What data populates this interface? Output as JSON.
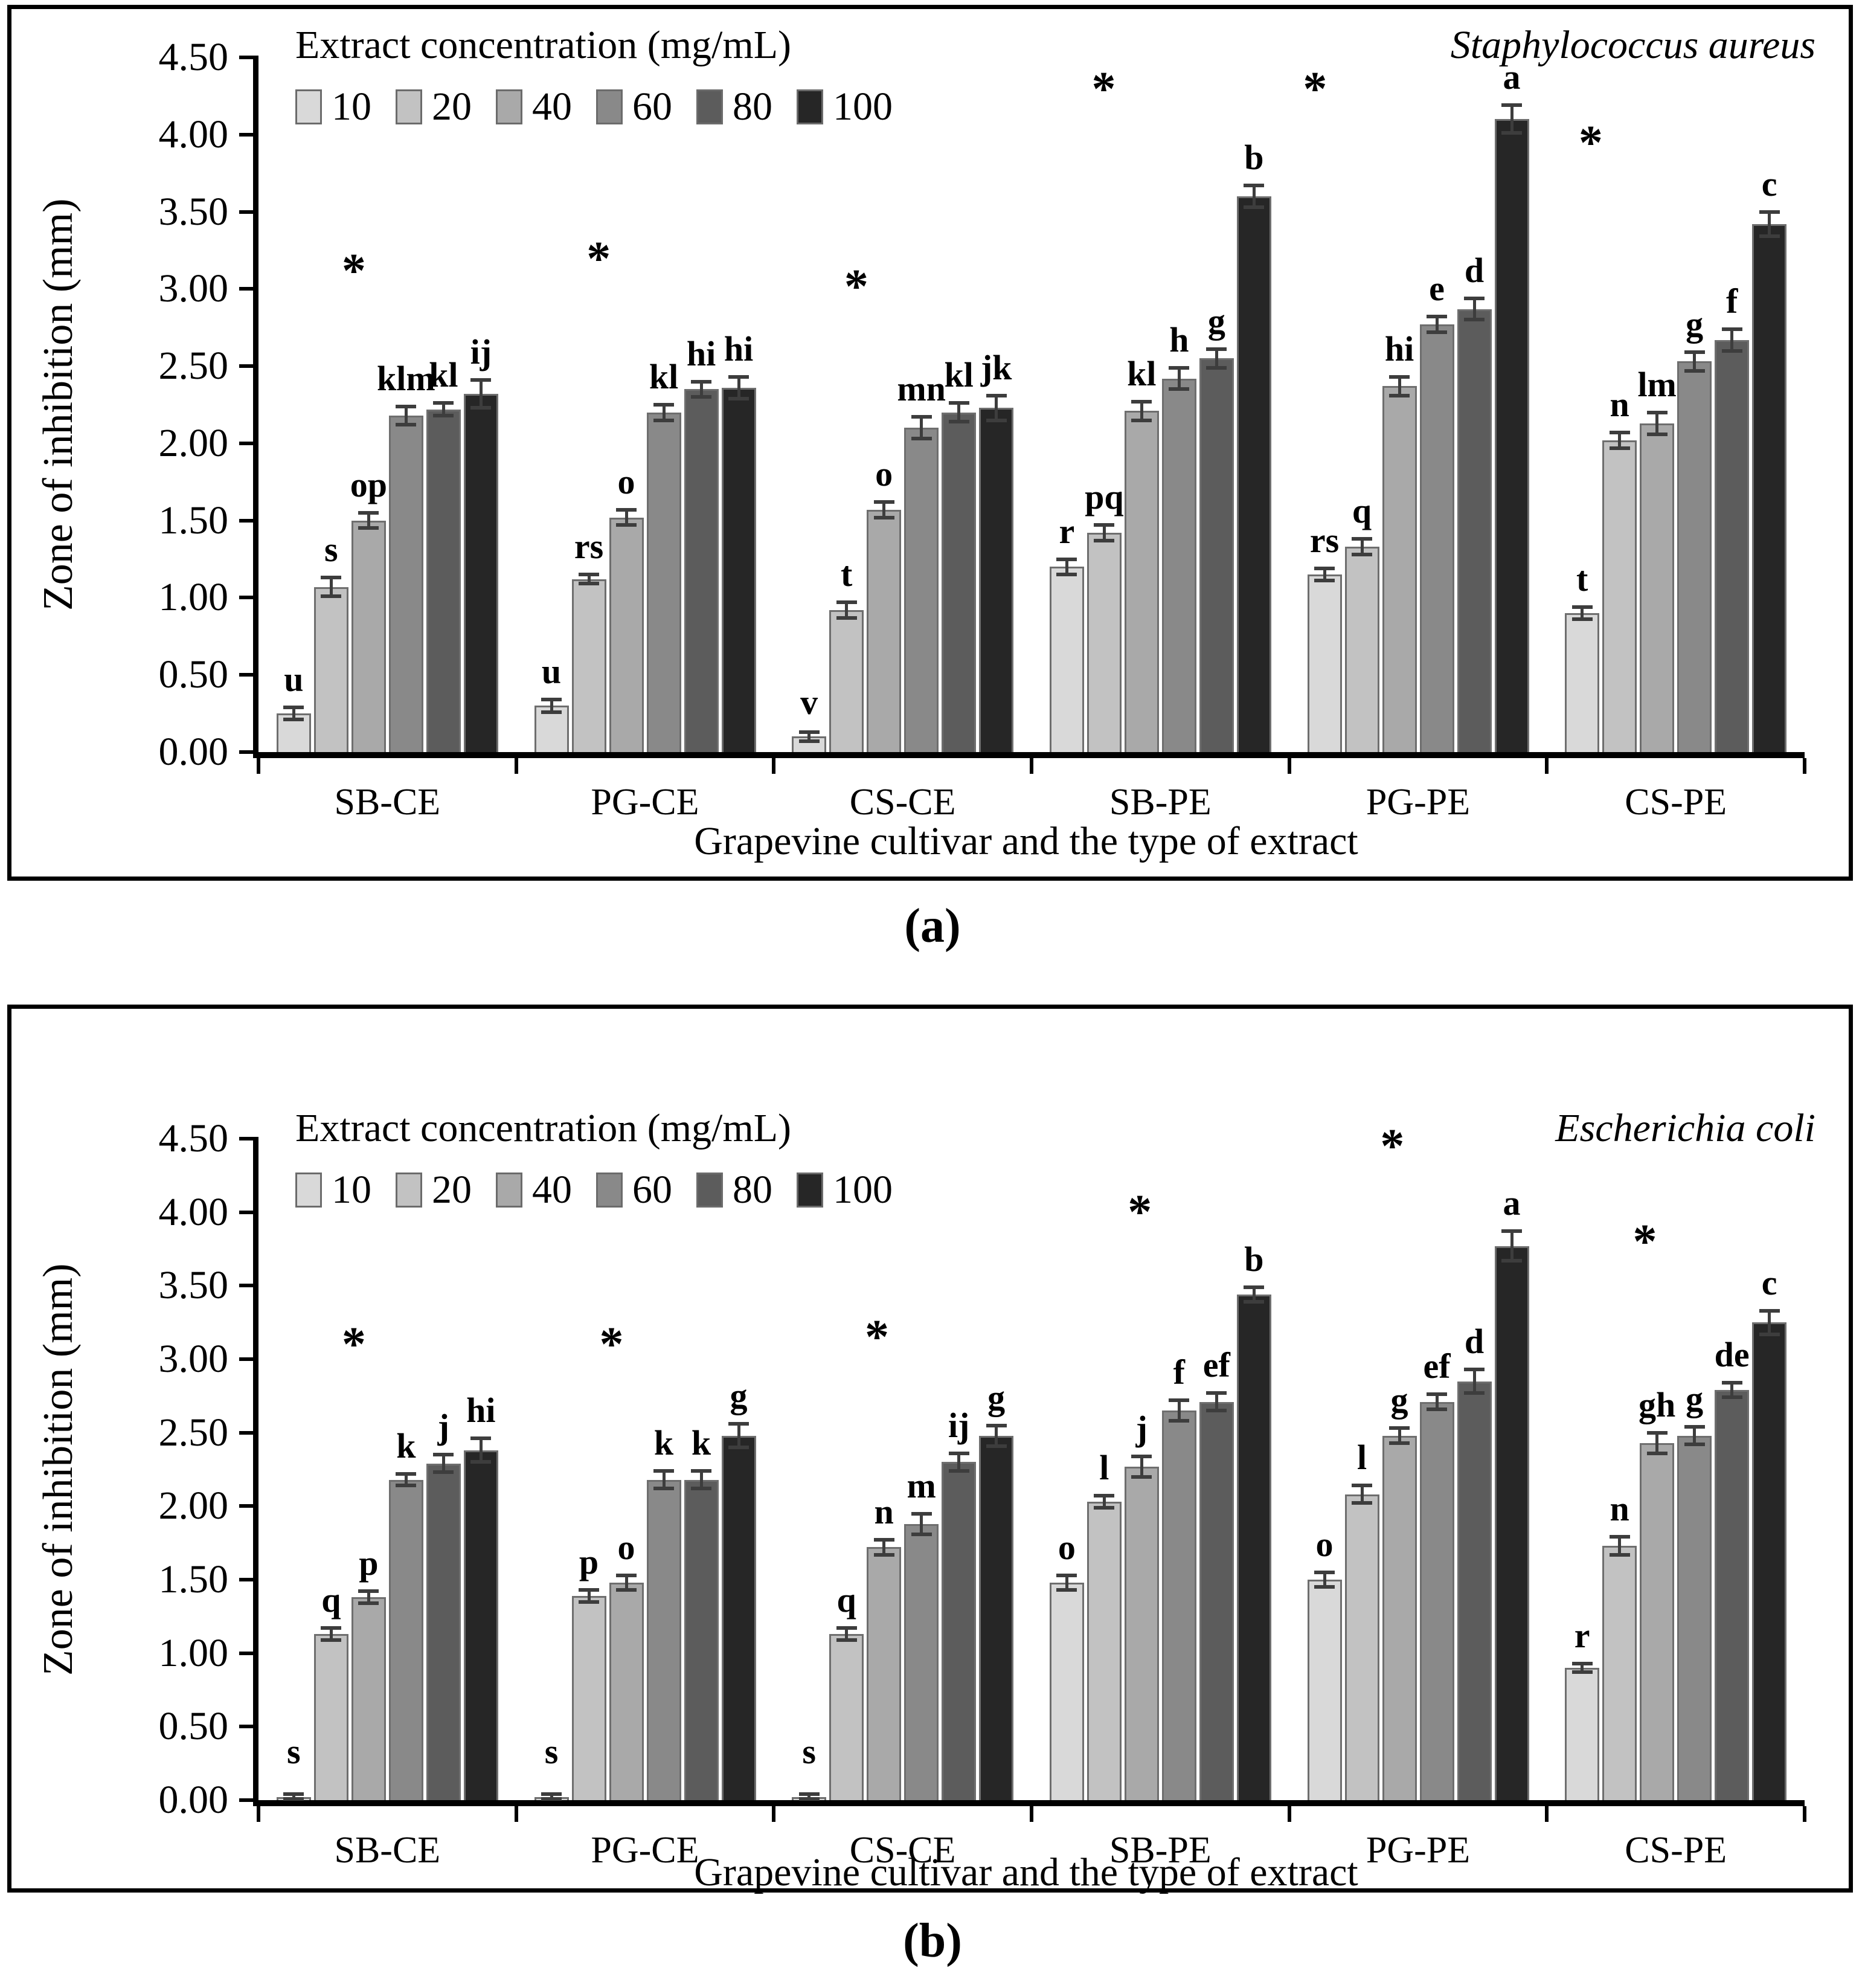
{
  "chart_data": [
    {
      "id": "a",
      "type": "bar",
      "panel_caption": "(a)",
      "title": "Staphylococcus aureus",
      "legend_title": "Extract concentration (mg/mL)",
      "legend_position": "top-left-inside",
      "xlabel": "Grapevine cultivar and the type of extract",
      "ylabel": "Zone of inhibition (mm)",
      "ylim": [
        0,
        4.5
      ],
      "ytick_step": 0.5,
      "grid": false,
      "axis_color": "#000000",
      "error_bar_color": "#3d3d3d",
      "categories": [
        "SB-CE",
        "PG-CE",
        "CS-CE",
        "SB-PE",
        "PG-PE",
        "CS-PE"
      ],
      "series": [
        {
          "name": "10",
          "color": "#d9d9d9",
          "values": [
            0.25,
            0.3,
            0.1,
            1.2,
            1.15,
            0.9
          ],
          "errors": [
            0.04,
            0.04,
            0.03,
            0.05,
            0.04,
            0.04
          ],
          "letters": [
            "u",
            "u",
            "v",
            "r",
            "rs",
            "t"
          ]
        },
        {
          "name": "20",
          "color": "#c2c2c2",
          "values": [
            1.07,
            1.12,
            0.92,
            1.42,
            1.33,
            2.02
          ],
          "errors": [
            0.06,
            0.03,
            0.05,
            0.05,
            0.05,
            0.05
          ],
          "letters": [
            "s",
            "rs",
            "t",
            "pq",
            "q",
            "n"
          ]
        },
        {
          "name": "40",
          "color": "#a9a9a9",
          "values": [
            1.5,
            1.52,
            1.57,
            2.21,
            2.37,
            2.13
          ],
          "errors": [
            0.05,
            0.05,
            0.05,
            0.06,
            0.06,
            0.07
          ],
          "letters": [
            "op",
            "o",
            "o",
            "kl",
            "hi",
            "lm"
          ]
        },
        {
          "name": "60",
          "color": "#898989",
          "values": [
            2.18,
            2.2,
            2.1,
            2.42,
            2.77,
            2.53
          ],
          "errors": [
            0.06,
            0.05,
            0.07,
            0.07,
            0.05,
            0.06
          ],
          "letters": [
            "klm",
            "kl",
            "mn",
            "h",
            "e",
            "g"
          ]
        },
        {
          "name": "80",
          "color": "#5c5c5c",
          "values": [
            2.22,
            2.35,
            2.2,
            2.55,
            2.87,
            2.67
          ],
          "errors": [
            0.04,
            0.05,
            0.06,
            0.06,
            0.07,
            0.07
          ],
          "letters": [
            "kl",
            "hi",
            "kl",
            "g",
            "d",
            "f"
          ]
        },
        {
          "name": "100",
          "color": "#262626",
          "values": [
            2.32,
            2.36,
            2.23,
            3.6,
            4.1,
            3.42
          ],
          "errors": [
            0.09,
            0.07,
            0.08,
            0.07,
            0.09,
            0.08
          ],
          "letters": [
            "ij",
            "hi",
            "jk",
            "b",
            "a",
            "c"
          ]
        }
      ],
      "asterisks": [
        {
          "category": "SB-CE",
          "x_frac": 0.37,
          "y": 3.02
        },
        {
          "category": "PG-CE",
          "x_frac": 0.32,
          "y": 3.1
        },
        {
          "category": "CS-CE",
          "x_frac": 0.32,
          "y": 2.92
        },
        {
          "category": "SB-PE",
          "x_frac": 0.28,
          "y": 4.2
        },
        {
          "category": "PG-PE",
          "x_frac": 0.1,
          "y": 4.2
        },
        {
          "category": "CS-PE",
          "x_frac": 0.17,
          "y": 3.85
        }
      ]
    },
    {
      "id": "b",
      "type": "bar",
      "panel_caption": "(b)",
      "title": "Escherichia coli",
      "legend_title": "Extract concentration (mg/mL)",
      "legend_position": "top-left-inside",
      "xlabel": "Grapevine cultivar and the type of extract",
      "ylabel": "Zone of inhibition (mm)",
      "ylim": [
        0,
        4.5
      ],
      "ytick_step": 0.5,
      "grid": false,
      "axis_color": "#000000",
      "error_bar_color": "#3d3d3d",
      "categories": [
        "SB-CE",
        "PG-CE",
        "CS-CE",
        "SB-PE",
        "PG-PE",
        "CS-PE"
      ],
      "series": [
        {
          "name": "10",
          "color": "#d9d9d9",
          "values": [
            0.02,
            0.02,
            0.02,
            1.48,
            1.5,
            0.9
          ],
          "errors": [
            0.01,
            0.01,
            0.01,
            0.05,
            0.05,
            0.03
          ],
          "letters": [
            "s",
            "s",
            "s",
            "o",
            "o",
            "r"
          ]
        },
        {
          "name": "20",
          "color": "#c2c2c2",
          "values": [
            1.13,
            1.39,
            1.13,
            2.03,
            2.08,
            1.73
          ],
          "errors": [
            0.04,
            0.04,
            0.04,
            0.04,
            0.06,
            0.06
          ],
          "letters": [
            "q",
            "p",
            "q",
            "l",
            "l",
            "n"
          ]
        },
        {
          "name": "40",
          "color": "#a9a9a9",
          "values": [
            1.38,
            1.48,
            1.72,
            2.27,
            2.48,
            2.43
          ],
          "errors": [
            0.04,
            0.05,
            0.05,
            0.07,
            0.05,
            0.07
          ],
          "letters": [
            "p",
            "o",
            "n",
            "j",
            "g",
            "gh"
          ]
        },
        {
          "name": "60",
          "color": "#898989",
          "values": [
            2.18,
            2.18,
            1.88,
            2.65,
            2.71,
            2.48
          ],
          "errors": [
            0.04,
            0.06,
            0.07,
            0.07,
            0.05,
            0.06
          ],
          "letters": [
            "k",
            "k",
            "m",
            "f",
            "ef",
            "g"
          ]
        },
        {
          "name": "80",
          "color": "#5c5c5c",
          "values": [
            2.29,
            2.18,
            2.3,
            2.71,
            2.85,
            2.79
          ],
          "errors": [
            0.06,
            0.06,
            0.06,
            0.06,
            0.08,
            0.05
          ],
          "letters": [
            "j",
            "k",
            "ij",
            "ef",
            "d",
            "de"
          ]
        },
        {
          "name": "100",
          "color": "#262626",
          "values": [
            2.38,
            2.48,
            2.48,
            3.44,
            3.77,
            3.25
          ],
          "errors": [
            0.08,
            0.08,
            0.07,
            0.05,
            0.1,
            0.08
          ],
          "letters": [
            "hi",
            "g",
            "g",
            "b",
            "a",
            "c"
          ]
        }
      ],
      "asterisks": [
        {
          "category": "SB-CE",
          "x_frac": 0.37,
          "y": 3.0
        },
        {
          "category": "PG-CE",
          "x_frac": 0.37,
          "y": 3.0
        },
        {
          "category": "CS-CE",
          "x_frac": 0.4,
          "y": 3.05
        },
        {
          "category": "SB-PE",
          "x_frac": 0.42,
          "y": 3.9
        },
        {
          "category": "PG-PE",
          "x_frac": 0.4,
          "y": 4.35
        },
        {
          "category": "CS-PE",
          "x_frac": 0.38,
          "y": 3.7
        }
      ]
    }
  ]
}
